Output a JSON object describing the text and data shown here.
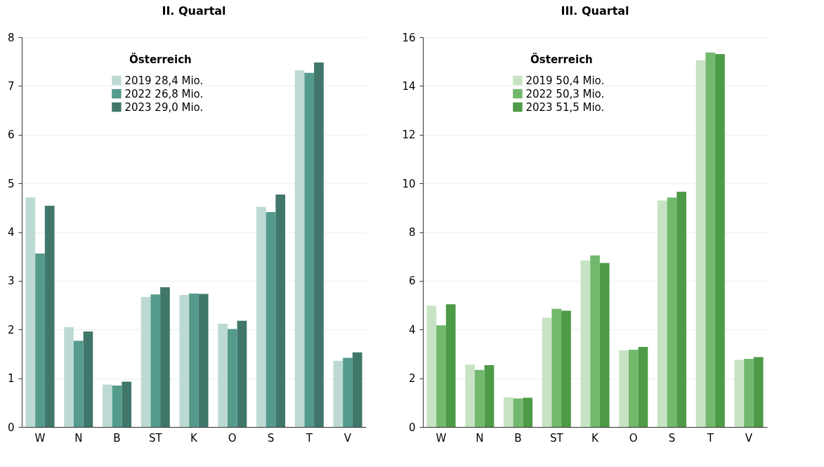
{
  "chart_data": [
    {
      "type": "bar",
      "title": "II. Quartal",
      "categories": [
        "W",
        "N",
        "B",
        "ST",
        "K",
        "O",
        "S",
        "T",
        "V"
      ],
      "legend_title": "Österreich",
      "legend": "top",
      "grid": "y",
      "ylim": [
        0,
        8
      ],
      "yticks": [
        0,
        1,
        2,
        3,
        4,
        5,
        6,
        7,
        8
      ],
      "series": [
        {
          "name": "2019   28,4 Mio.",
          "color": "#bcdad3",
          "values": [
            4.71,
            2.05,
            0.87,
            2.67,
            2.71,
            2.12,
            4.52,
            7.32,
            1.36
          ]
        },
        {
          "name": "2022   26,8 Mio.",
          "color": "#559b8c",
          "values": [
            3.56,
            1.77,
            0.85,
            2.72,
            2.74,
            2.01,
            4.41,
            7.27,
            1.42
          ]
        },
        {
          "name": "2023   29,0 Mio.",
          "color": "#41776b",
          "values": [
            4.54,
            1.96,
            0.93,
            2.87,
            2.73,
            2.18,
            4.77,
            7.48,
            1.53
          ]
        }
      ]
    },
    {
      "type": "bar",
      "title": "III. Quartal",
      "categories": [
        "W",
        "N",
        "B",
        "ST",
        "K",
        "O",
        "S",
        "T",
        "V"
      ],
      "legend_title": "Österreich",
      "legend": "top",
      "grid": "y",
      "ylim": [
        0,
        16
      ],
      "yticks": [
        0,
        2,
        4,
        6,
        8,
        10,
        12,
        14,
        16
      ],
      "series": [
        {
          "name": "2019   50,4 Mio.",
          "color": "#c7e3c3",
          "values": [
            4.98,
            2.56,
            1.22,
            4.48,
            6.84,
            3.15,
            9.3,
            15.05,
            2.75
          ]
        },
        {
          "name": "2022   50,3 Mio.",
          "color": "#72b96d",
          "values": [
            4.17,
            2.34,
            1.17,
            4.85,
            7.04,
            3.17,
            9.42,
            15.37,
            2.8
          ]
        },
        {
          "name": "2023   51,5 Mio.",
          "color": "#4d9a47",
          "values": [
            5.04,
            2.54,
            1.2,
            4.77,
            6.73,
            3.29,
            9.66,
            15.31,
            2.87
          ]
        }
      ]
    }
  ]
}
